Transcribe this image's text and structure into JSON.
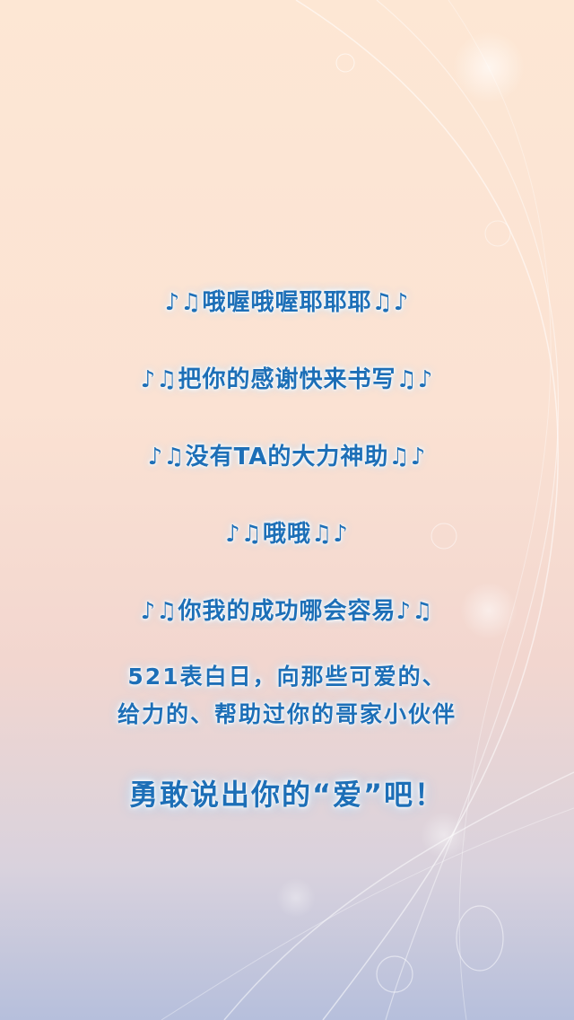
{
  "lyrics": [
    {
      "prefix": "♪♫",
      "text": "哦喔哦喔耶耶耶",
      "suffix": "♫♪"
    },
    {
      "prefix": "♪♫",
      "text": "把你的感谢快来书写",
      "suffix": "♫♪"
    },
    {
      "prefix": "♪♫",
      "text": "没有TA的大力神助",
      "suffix": "♫♪"
    },
    {
      "prefix": "♪♫",
      "text": "哦哦",
      "suffix": "♫♪"
    },
    {
      "prefix": "♪♫",
      "text": "你我的成功哪会容易",
      "suffix": "♪♫"
    }
  ],
  "message": {
    "line1": "521表白日，向那些可爱的、",
    "line2": "给力的、帮助过你的哥家小伙伴"
  },
  "closing": "勇敢说出你的“爱”吧！",
  "colors": {
    "text": "#1d6fb7",
    "glow": "#ffffff",
    "bg_top": "#fde7d4",
    "bg_bottom": "#b6bfdc"
  }
}
